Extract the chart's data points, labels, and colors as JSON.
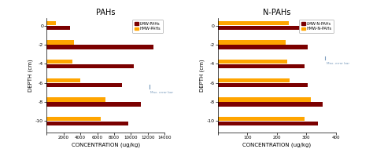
{
  "pahs_title": "PAHs",
  "npahs_title": "N-PAHs",
  "depths": [
    0,
    -2,
    -4,
    -6,
    -8,
    -10
  ],
  "pahs_lmw": [
    2800,
    12700,
    10300,
    8900,
    11200,
    9700
  ],
  "pahs_hmw": [
    1100,
    3200,
    3100,
    4000,
    7000,
    6400
  ],
  "npahs_lmw": [
    285,
    305,
    295,
    305,
    355,
    340
  ],
  "npahs_hmw": [
    240,
    230,
    235,
    245,
    315,
    295
  ],
  "lmw_color": "#7B0000",
  "hmw_color": "#FFA500",
  "pahs_xlim": [
    0,
    14000
  ],
  "pahs_xticks": [
    0,
    2000,
    4000,
    6000,
    8000,
    10000,
    12000,
    14000
  ],
  "npahs_xlim": [
    0,
    400
  ],
  "npahs_xticks": [
    0,
    100,
    200,
    300,
    400
  ],
  "ylim": [
    -11.2,
    0.8
  ],
  "yticks": [
    0,
    -2,
    -4,
    -6,
    -8,
    -10
  ],
  "ylabel": "DEPTH (cm)",
  "xlabel": "CONCENTRATION (ug/kg)",
  "pahs_legend": [
    "LMW-PAHs",
    "HMW-PAHs"
  ],
  "npahs_legend": [
    "LMW-N-PAHs",
    "HMW-N-PAHs"
  ],
  "max_error_bar_text": "Max. error bar",
  "bar_height": 0.45,
  "bar_gap": 0.05,
  "background_color": "#ffffff",
  "annotation_color": "#7799BB"
}
